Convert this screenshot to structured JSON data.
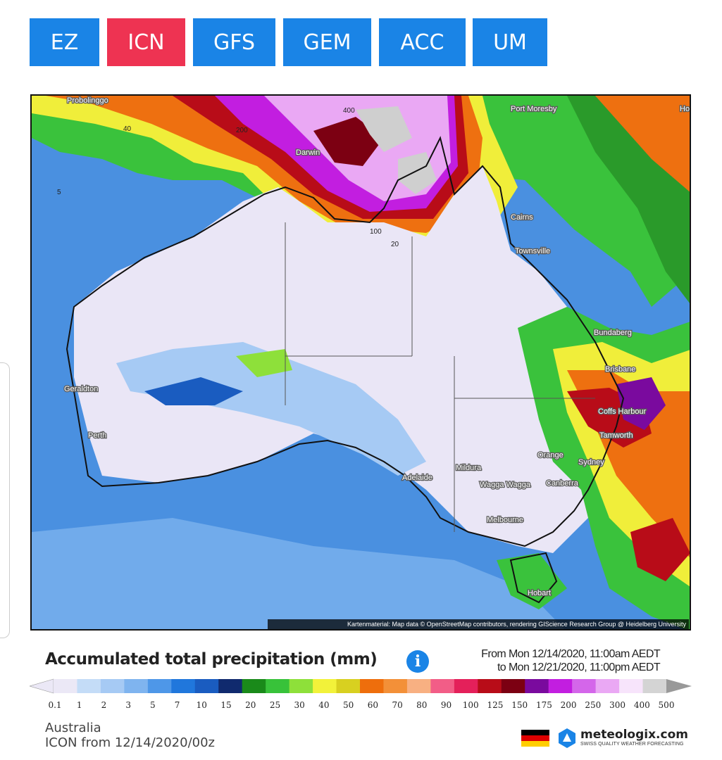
{
  "model_tabs": [
    {
      "label": "EZ",
      "active": false
    },
    {
      "label": "ICN",
      "active": true
    },
    {
      "label": "GFS",
      "active": false
    },
    {
      "label": "GEM",
      "active": false
    },
    {
      "label": "ACC",
      "active": false
    },
    {
      "label": "UM",
      "active": false
    }
  ],
  "map": {
    "cities": [
      "Probolinggo",
      "Port Moresby",
      "Ho",
      "Darwin",
      "Cairns",
      "Townsville",
      "Bundaberg",
      "Brisbane",
      "Geraldton",
      "Perth",
      "Coffs Harbour",
      "Tamworth",
      "Orange",
      "Sydney",
      "Mildura",
      "Adelaide",
      "Wagga Wagga",
      "Canberra",
      "Melbourne",
      "Hobart"
    ],
    "contour_labels": [
      "400",
      "200",
      "100",
      "40",
      "20",
      "5"
    ],
    "attribution": "Kartenmaterial: Map data © OpenStreetMap contributors, rendering GIScience Research Group @ Heidelberg University"
  },
  "title": "Accumulated total precipitation (mm)",
  "period": {
    "from": "From Mon 12/14/2020, 11:00am AEDT",
    "to": "to Mon 12/21/2020, 11:00pm AEDT"
  },
  "legend": {
    "ticks": [
      "0.1",
      "1",
      "2",
      "3",
      "5",
      "7",
      "10",
      "15",
      "20",
      "25",
      "30",
      "40",
      "50",
      "60",
      "70",
      "80",
      "90",
      "100",
      "125",
      "150",
      "175",
      "200",
      "250",
      "300",
      "400",
      "500"
    ],
    "colors": [
      "#ebe8f6",
      "#c4dcf7",
      "#a6caf4",
      "#7fb4ef",
      "#4e97e8",
      "#2077dc",
      "#1a5cc0",
      "#102a6e",
      "#1a8a1a",
      "#38c23a",
      "#8ee03a",
      "#f2f23a",
      "#d8d020",
      "#ee6e0c",
      "#f39038",
      "#f8b082",
      "#f25d87",
      "#e4205a",
      "#b80c18",
      "#7c0012",
      "#7a0a9e",
      "#c21ee0",
      "#d466ea",
      "#eaa8f4",
      "#f7e4fb",
      "#d4d4d4"
    ]
  },
  "region": "Australia",
  "model_run": "ICON from 12/14/2020/00z",
  "brand": {
    "name": "meteologix.com",
    "tagline": "SWISS QUALITY WEATHER FORECASTING"
  }
}
